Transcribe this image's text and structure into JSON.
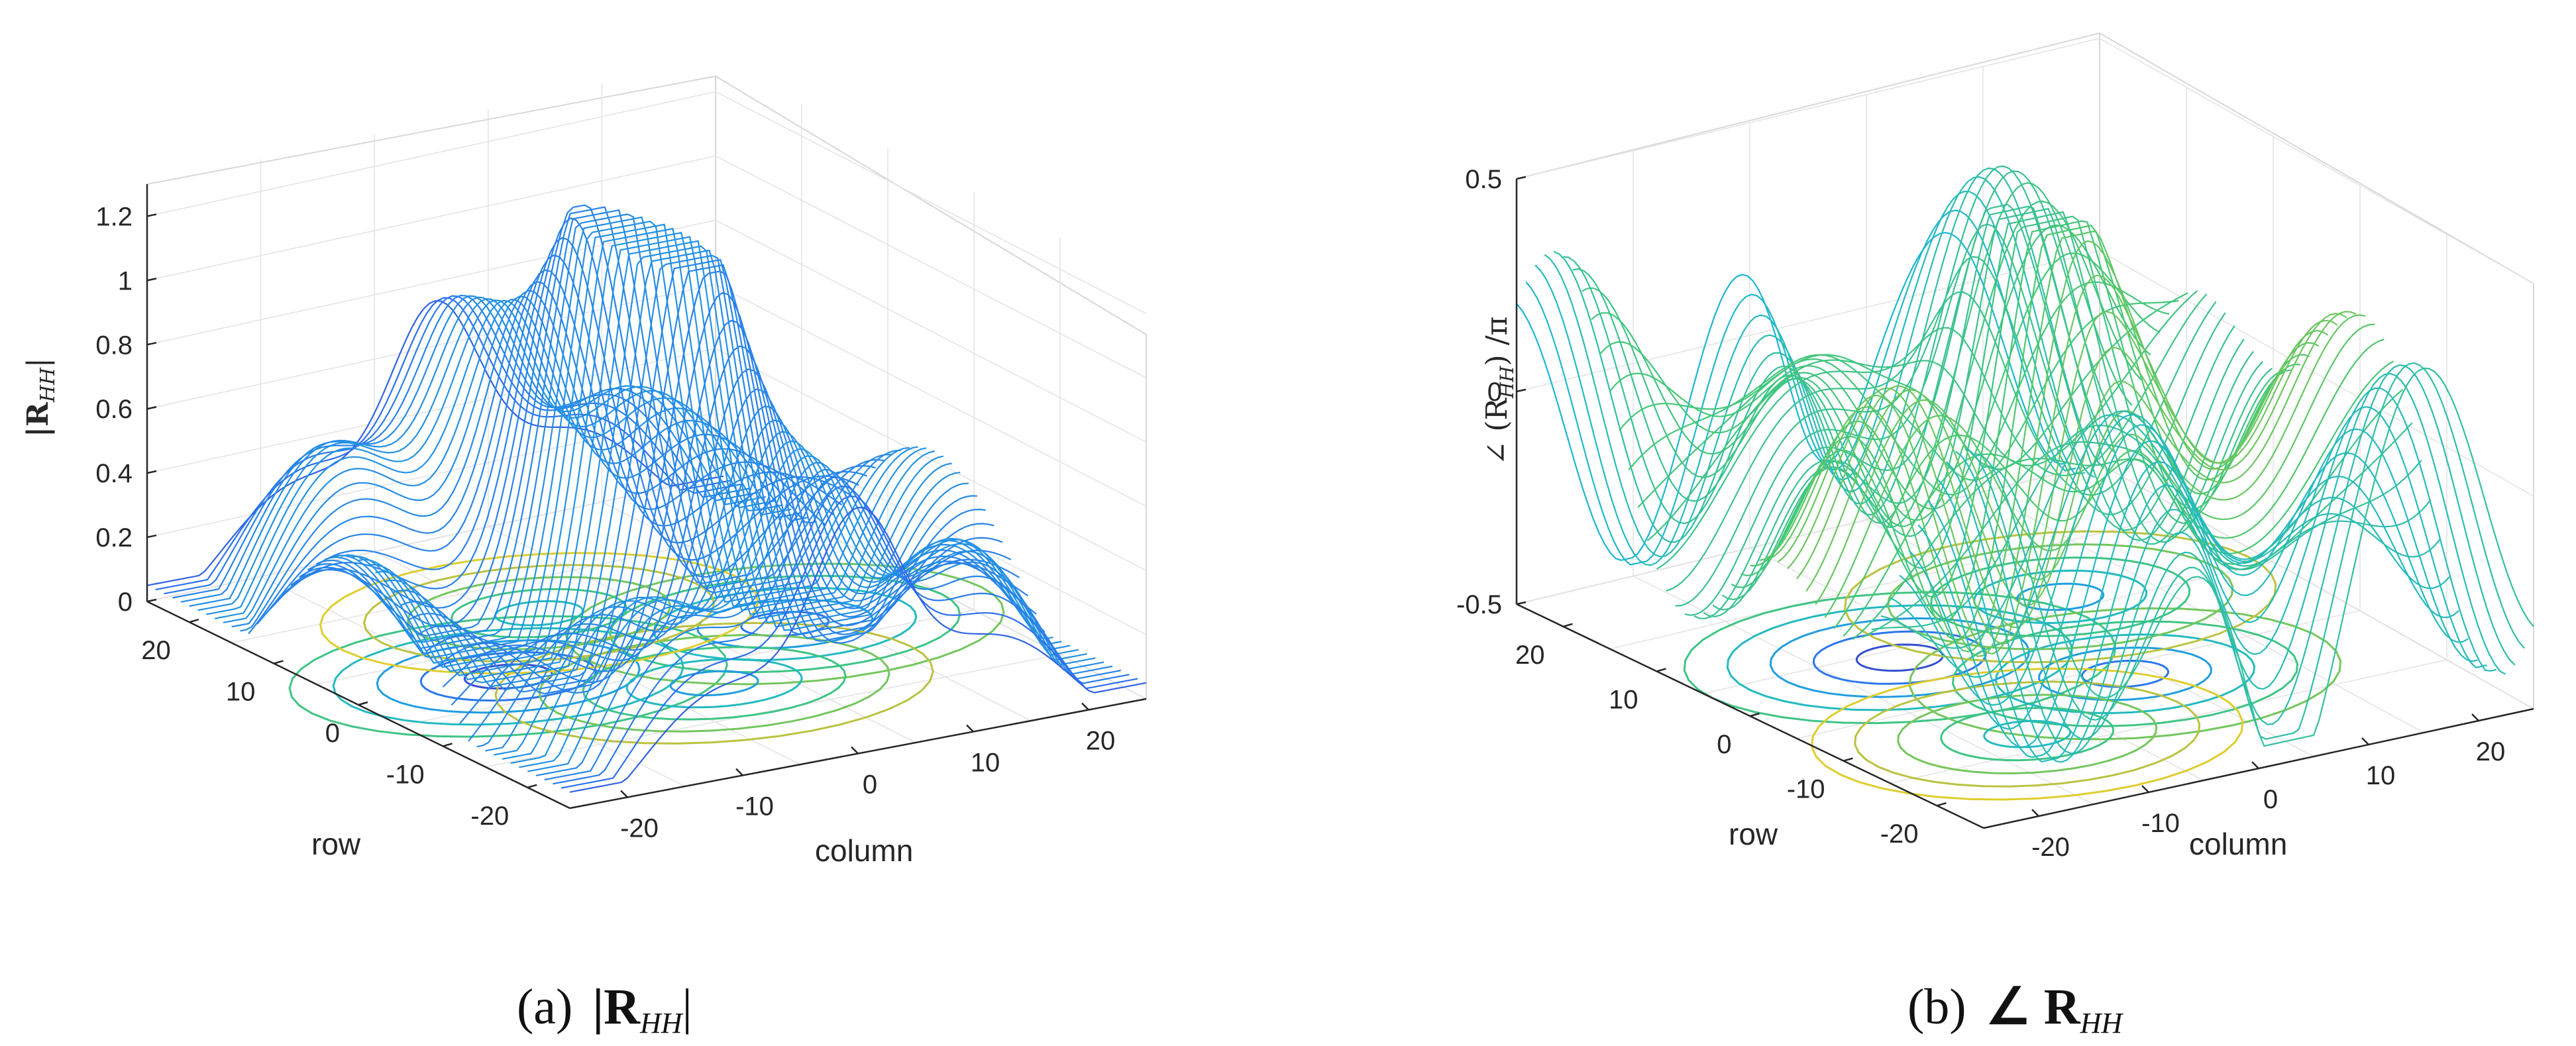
{
  "chart_data": [
    {
      "type": "surface",
      "panel_label": "(a)",
      "caption_math": "|R",
      "caption_sub": "HH",
      "caption_close": "|",
      "ylabel": "|R",
      "ylabel_sub": "HH",
      "ylabel_close": "|",
      "xlabel": "row",
      "zlabel": "column",
      "vertical_ticks": [
        "0",
        "0.2",
        "0.4",
        "0.6",
        "0.8",
        "1",
        "1.2"
      ],
      "vertical_range": [
        0,
        1.3
      ],
      "row_ticks": [
        "20",
        "10",
        "0",
        "-10",
        "-20"
      ],
      "column_ticks": [
        "-20",
        "-10",
        "0",
        "10",
        "20"
      ],
      "grid": true,
      "colormap": [
        "#3e26a8",
        "#2e6fef",
        "#19b6d6",
        "#4ac86e",
        "#c9c13a",
        "#fadd1e"
      ]
    },
    {
      "type": "surface",
      "panel_label": "(b)",
      "caption_math": "∠ R",
      "caption_sub": "HH",
      "ylabel": "∠ (R",
      "ylabel_sub": "HH",
      "ylabel_close": ") /π",
      "xlabel": "row",
      "zlabel": "column",
      "vertical_ticks": [
        "-0.5",
        "0",
        "0.5"
      ],
      "vertical_range": [
        -0.5,
        0.5
      ],
      "row_ticks": [
        "20",
        "10",
        "0",
        "-10",
        "-20"
      ],
      "column_ticks": [
        "-20",
        "-10",
        "0",
        "10",
        "20"
      ],
      "grid": true,
      "colormap": [
        "#3e26a8",
        "#2e6fef",
        "#19b6d6",
        "#4ac86e",
        "#c9c13a",
        "#fadd1e"
      ]
    }
  ]
}
